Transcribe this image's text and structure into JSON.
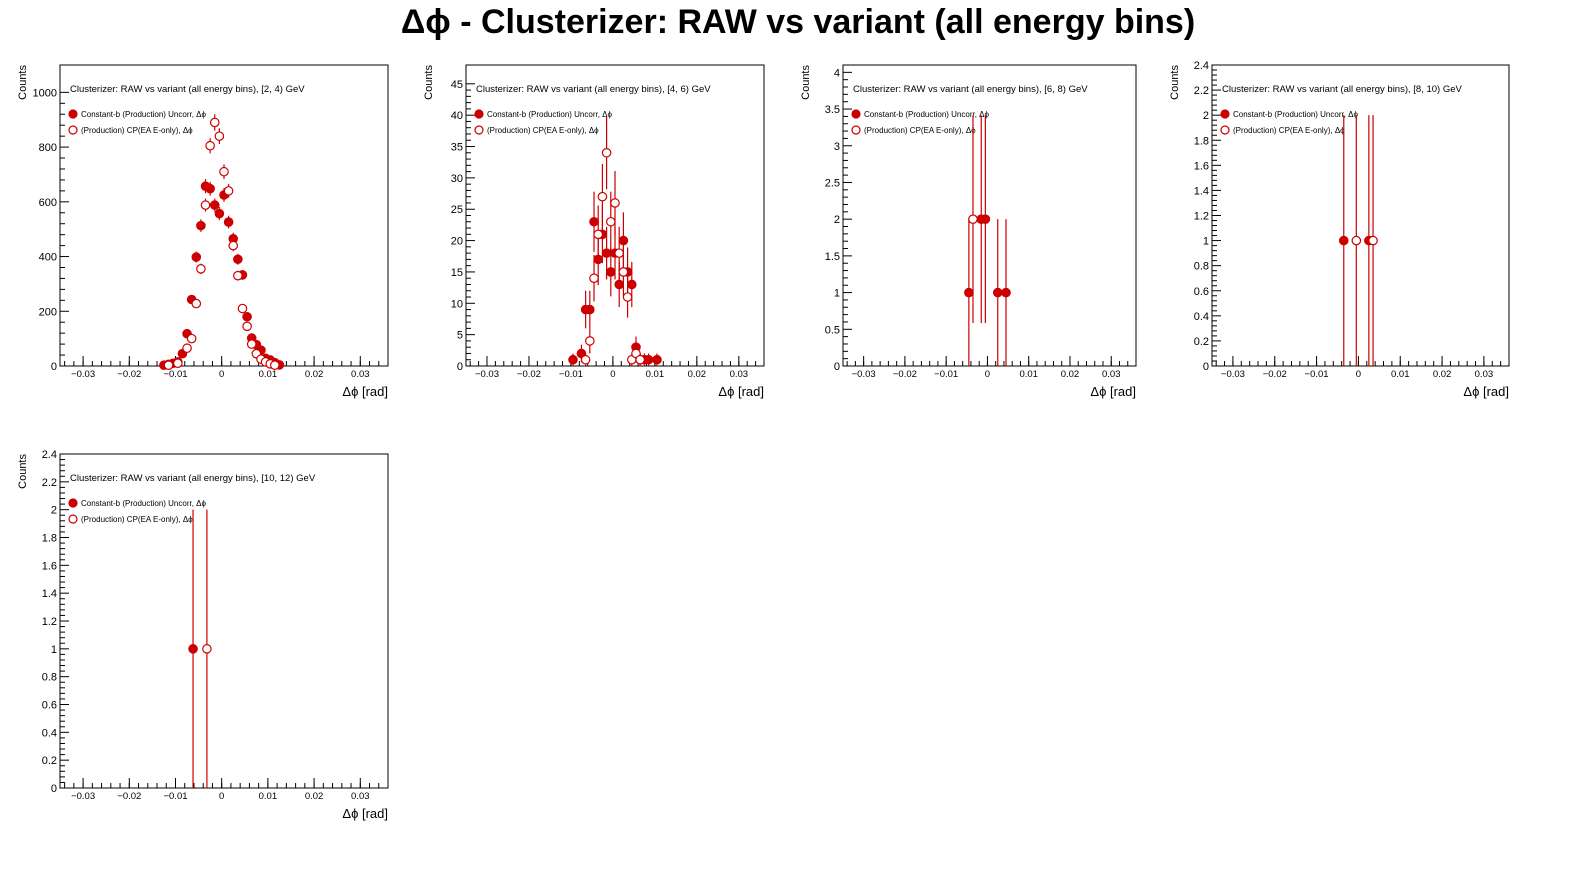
{
  "page": {
    "title": "Δϕ  -  Clusterizer: RAW vs variant (all energy bins)"
  },
  "colors": {
    "series": "#cc0000",
    "axis": "#000000",
    "background": "#ffffff"
  },
  "chart_data": [
    {
      "type": "scatter",
      "title": "Clusterizer: RAW vs variant (all energy bins), [2, 4) GeV",
      "xlabel": "Δϕ  [rad]",
      "ylabel": "Counts",
      "xlim": [
        -0.035,
        0.036
      ],
      "ylim": [
        0,
        1100
      ],
      "xticks": [
        -0.03,
        -0.02,
        -0.01,
        0,
        0.01,
        0.02,
        0.03
      ],
      "xtick_labels": [
        "−0.03",
        "−0.02",
        "−0.01",
        "0",
        "0.01",
        "0.02",
        "0.03"
      ],
      "yticks": [
        0,
        200,
        400,
        600,
        800,
        1000
      ],
      "ytick_labels": [
        "0",
        "200",
        "400",
        "600",
        "800",
        "1000"
      ],
      "legend_position": "top-left",
      "series": [
        {
          "name": "Constant-b (Production) Uncorr, Δϕ",
          "marker": "filled-circle",
          "points": [
            {
              "x": -0.0125,
              "y": 3,
              "err": 2
            },
            {
              "x": -0.0115,
              "y": 6,
              "err": 3
            },
            {
              "x": -0.0105,
              "y": 10,
              "err": 3
            },
            {
              "x": -0.0095,
              "y": 15,
              "err": 4
            },
            {
              "x": -0.0085,
              "y": 45,
              "err": 7
            },
            {
              "x": -0.0075,
              "y": 118,
              "err": 11
            },
            {
              "x": -0.0065,
              "y": 243,
              "err": 16
            },
            {
              "x": -0.0055,
              "y": 398,
              "err": 20
            },
            {
              "x": -0.0045,
              "y": 513,
              "err": 23
            },
            {
              "x": -0.0035,
              "y": 657,
              "err": 26
            },
            {
              "x": -0.0025,
              "y": 648,
              "err": 25
            },
            {
              "x": -0.0015,
              "y": 588,
              "err": 24
            },
            {
              "x": -0.0005,
              "y": 557,
              "err": 24
            },
            {
              "x": 0.0005,
              "y": 625,
              "err": 25
            },
            {
              "x": 0.0015,
              "y": 526,
              "err": 23
            },
            {
              "x": 0.0025,
              "y": 465,
              "err": 22
            },
            {
              "x": 0.0035,
              "y": 390,
              "err": 20
            },
            {
              "x": 0.0045,
              "y": 333,
              "err": 18
            },
            {
              "x": 0.0055,
              "y": 180,
              "err": 13
            },
            {
              "x": 0.0065,
              "y": 102,
              "err": 10
            },
            {
              "x": 0.0075,
              "y": 78,
              "err": 9
            },
            {
              "x": 0.0085,
              "y": 58,
              "err": 8
            },
            {
              "x": 0.0095,
              "y": 28,
              "err": 5
            },
            {
              "x": 0.0105,
              "y": 22,
              "err": 5
            },
            {
              "x": 0.0115,
              "y": 12,
              "err": 3
            },
            {
              "x": 0.0125,
              "y": 4,
              "err": 2
            }
          ]
        },
        {
          "name": "(Production) CP(EA E-only), Δϕ",
          "marker": "open-circle",
          "points": [
            {
              "x": -0.0115,
              "y": 3,
              "err": 2
            },
            {
              "x": -0.0095,
              "y": 10,
              "err": 3
            },
            {
              "x": -0.0075,
              "y": 65,
              "err": 8
            },
            {
              "x": -0.0065,
              "y": 100,
              "err": 10
            },
            {
              "x": -0.0055,
              "y": 228,
              "err": 15
            },
            {
              "x": -0.0045,
              "y": 355,
              "err": 19
            },
            {
              "x": -0.0035,
              "y": 588,
              "err": 24
            },
            {
              "x": -0.0025,
              "y": 805,
              "err": 28
            },
            {
              "x": -0.0015,
              "y": 890,
              "err": 30
            },
            {
              "x": -0.0005,
              "y": 840,
              "err": 29
            },
            {
              "x": 0.0005,
              "y": 710,
              "err": 27
            },
            {
              "x": 0.0015,
              "y": 640,
              "err": 25
            },
            {
              "x": 0.0025,
              "y": 440,
              "err": 21
            },
            {
              "x": 0.0035,
              "y": 330,
              "err": 18
            },
            {
              "x": 0.0045,
              "y": 210,
              "err": 14
            },
            {
              "x": 0.0055,
              "y": 145,
              "err": 12
            },
            {
              "x": 0.0065,
              "y": 80,
              "err": 9
            },
            {
              "x": 0.0075,
              "y": 45,
              "err": 7
            },
            {
              "x": 0.0085,
              "y": 25,
              "err": 5
            },
            {
              "x": 0.0095,
              "y": 15,
              "err": 4
            },
            {
              "x": 0.0105,
              "y": 8,
              "err": 3
            },
            {
              "x": 0.0115,
              "y": 3,
              "err": 2
            }
          ]
        }
      ]
    },
    {
      "type": "scatter",
      "title": "Clusterizer: RAW vs variant (all energy bins), [4, 6) GeV",
      "xlabel": "Δϕ  [rad]",
      "ylabel": "Counts",
      "xlim": [
        -0.035,
        0.036
      ],
      "ylim": [
        0,
        48
      ],
      "xticks": [
        -0.03,
        -0.02,
        -0.01,
        0,
        0.01,
        0.02,
        0.03
      ],
      "xtick_labels": [
        "−0.03",
        "−0.02",
        "−0.01",
        "0",
        "0.01",
        "0.02",
        "0.03"
      ],
      "yticks": [
        0,
        5,
        10,
        15,
        20,
        25,
        30,
        35,
        40,
        45
      ],
      "ytick_labels": [
        "0",
        "5",
        "10",
        "15",
        "20",
        "25",
        "30",
        "35",
        "40",
        "45"
      ],
      "legend_position": "top-left",
      "series": [
        {
          "name": "Constant-b (Production) Uncorr, Δϕ",
          "marker": "filled-circle",
          "points": [
            {
              "x": -0.0095,
              "y": 1,
              "err": 1
            },
            {
              "x": -0.0075,
              "y": 2,
              "err": 1.4
            },
            {
              "x": -0.0065,
              "y": 9,
              "err": 3
            },
            {
              "x": -0.0055,
              "y": 9,
              "err": 3
            },
            {
              "x": -0.0045,
              "y": 23,
              "err": 4.8
            },
            {
              "x": -0.0035,
              "y": 17,
              "err": 4.1
            },
            {
              "x": -0.0025,
              "y": 21,
              "err": 4.6
            },
            {
              "x": -0.0015,
              "y": 18,
              "err": 4.2
            },
            {
              "x": -0.0005,
              "y": 15,
              "err": 3.9
            },
            {
              "x": 0.0005,
              "y": 18,
              "err": 4.2
            },
            {
              "x": 0.0015,
              "y": 13,
              "err": 3.6
            },
            {
              "x": 0.0025,
              "y": 20,
              "err": 4.5
            },
            {
              "x": 0.0035,
              "y": 15,
              "err": 3.9
            },
            {
              "x": 0.0045,
              "y": 13,
              "err": 3.6
            },
            {
              "x": 0.0055,
              "y": 3,
              "err": 1.7
            },
            {
              "x": 0.0065,
              "y": 1,
              "err": 1
            },
            {
              "x": 0.0075,
              "y": 1,
              "err": 1
            },
            {
              "x": 0.0085,
              "y": 1,
              "err": 1
            },
            {
              "x": 0.0105,
              "y": 1,
              "err": 1
            }
          ]
        },
        {
          "name": "(Production) CP(EA E-only), Δϕ",
          "marker": "open-circle",
          "points": [
            {
              "x": -0.0065,
              "y": 1,
              "err": 1
            },
            {
              "x": -0.0055,
              "y": 4,
              "err": 2
            },
            {
              "x": -0.0045,
              "y": 14,
              "err": 3.7
            },
            {
              "x": -0.0035,
              "y": 21,
              "err": 4.6
            },
            {
              "x": -0.0025,
              "y": 27,
              "err": 5.2
            },
            {
              "x": -0.0015,
              "y": 34,
              "err": 5.8
            },
            {
              "x": -0.0005,
              "y": 23,
              "err": 4.8
            },
            {
              "x": 0.0005,
              "y": 26,
              "err": 5.1
            },
            {
              "x": 0.0015,
              "y": 18,
              "err": 4.2
            },
            {
              "x": 0.0025,
              "y": 15,
              "err": 3.9
            },
            {
              "x": 0.0035,
              "y": 11,
              "err": 3.3
            },
            {
              "x": 0.0045,
              "y": 1,
              "err": 1
            },
            {
              "x": 0.0055,
              "y": 2,
              "err": 1.4
            },
            {
              "x": 0.0065,
              "y": 1,
              "err": 1
            }
          ]
        }
      ]
    },
    {
      "type": "scatter",
      "title": "Clusterizer: RAW vs variant (all energy bins), [6, 8) GeV",
      "xlabel": "Δϕ  [rad]",
      "ylabel": "Counts",
      "xlim": [
        -0.035,
        0.036
      ],
      "ylim": [
        0,
        4.1
      ],
      "xticks": [
        -0.03,
        -0.02,
        -0.01,
        0,
        0.01,
        0.02,
        0.03
      ],
      "xtick_labels": [
        "−0.03",
        "−0.02",
        "−0.01",
        "0",
        "0.01",
        "0.02",
        "0.03"
      ],
      "yticks": [
        0,
        0.5,
        1,
        1.5,
        2,
        2.5,
        3,
        3.5,
        4
      ],
      "ytick_labels": [
        "0",
        "0.5",
        "1",
        "1.5",
        "2",
        "2.5",
        "3",
        "3.5",
        "4"
      ],
      "legend_position": "top-left",
      "series": [
        {
          "name": "Constant-b (Production) Uncorr, Δϕ",
          "marker": "filled-circle",
          "points": [
            {
              "x": -0.0045,
              "y": 1,
              "err": 1
            },
            {
              "x": -0.0015,
              "y": 2,
              "err": 1.414
            },
            {
              "x": -0.0005,
              "y": 2,
              "err": 1.414
            },
            {
              "x": 0.0025,
              "y": 1,
              "err": 1
            },
            {
              "x": 0.0045,
              "y": 1,
              "err": 1
            }
          ]
        },
        {
          "name": "(Production) CP(EA E-only), Δϕ",
          "marker": "open-circle",
          "points": [
            {
              "x": -0.0035,
              "y": 2,
              "err": 1.414
            }
          ]
        }
      ]
    },
    {
      "type": "scatter",
      "title": "Clusterizer: RAW vs variant (all energy bins), [8, 10) GeV",
      "xlabel": "Δϕ  [rad]",
      "ylabel": "Counts",
      "xlim": [
        -0.035,
        0.036
      ],
      "ylim": [
        0,
        2.4
      ],
      "xticks": [
        -0.03,
        -0.02,
        -0.01,
        0,
        0.01,
        0.02,
        0.03
      ],
      "xtick_labels": [
        "−0.03",
        "−0.02",
        "−0.01",
        "0",
        "0.01",
        "0.02",
        "0.03"
      ],
      "yticks": [
        0,
        0.2,
        0.4,
        0.6,
        0.8,
        1,
        1.2,
        1.4,
        1.6,
        1.8,
        2,
        2.2,
        2.4
      ],
      "ytick_labels": [
        "0",
        "0.2",
        "0.4",
        "0.6",
        "0.8",
        "1",
        "1.2",
        "1.4",
        "1.6",
        "1.8",
        "2",
        "2.2",
        "2.4"
      ],
      "legend_position": "top-left",
      "series": [
        {
          "name": "Constant-b (Production) Uncorr, Δϕ",
          "marker": "filled-circle",
          "points": [
            {
              "x": -0.0035,
              "y": 1,
              "err": 1
            },
            {
              "x": 0.0025,
              "y": 1,
              "err": 1
            }
          ]
        },
        {
          "name": "(Production) CP(EA E-only), Δϕ",
          "marker": "open-circle",
          "points": [
            {
              "x": -0.0005,
              "y": 1,
              "err": 1
            },
            {
              "x": 0.0035,
              "y": 1,
              "err": 1
            }
          ]
        }
      ]
    },
    {
      "type": "scatter",
      "title": "Clusterizer: RAW vs variant (all energy bins), [10, 12) GeV",
      "xlabel": "Δϕ  [rad]",
      "ylabel": "Counts",
      "xlim": [
        -0.035,
        0.036
      ],
      "ylim": [
        0,
        2.4
      ],
      "xticks": [
        -0.03,
        -0.02,
        -0.01,
        0,
        0.01,
        0.02,
        0.03
      ],
      "xtick_labels": [
        "−0.03",
        "−0.02",
        "−0.01",
        "0",
        "0.01",
        "0.02",
        "0.03"
      ],
      "yticks": [
        0,
        0.2,
        0.4,
        0.6,
        0.8,
        1,
        1.2,
        1.4,
        1.6,
        1.8,
        2,
        2.2,
        2.4
      ],
      "ytick_labels": [
        "0",
        "0.2",
        "0.4",
        "0.6",
        "0.8",
        "1",
        "1.2",
        "1.4",
        "1.6",
        "1.8",
        "2",
        "2.2",
        "2.4"
      ],
      "legend_position": "top-left",
      "series": [
        {
          "name": "Constant-b (Production) Uncorr, Δϕ",
          "marker": "filled-circle",
          "points": [
            {
              "x": -0.0062,
              "y": 1,
              "err": 1
            }
          ]
        },
        {
          "name": "(Production) CP(EA E-only), Δϕ",
          "marker": "open-circle",
          "points": [
            {
              "x": -0.0032,
              "y": 1,
              "err": 1
            }
          ]
        }
      ]
    }
  ]
}
